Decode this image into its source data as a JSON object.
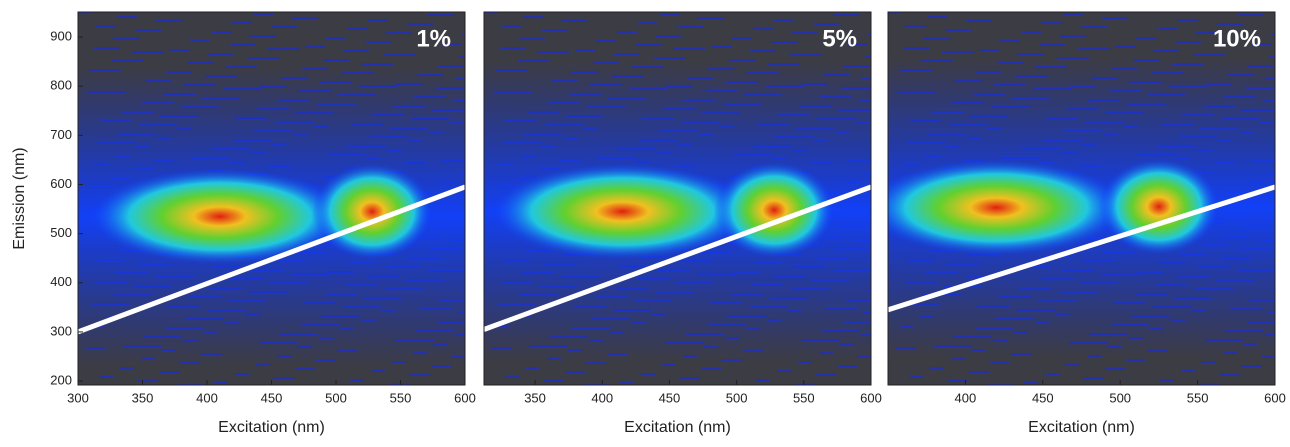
{
  "chart_data": [
    {
      "type": "contour",
      "title": "1%",
      "x_label": "Excitation (nm)",
      "y_label": "Emission (nm)",
      "xlim": [
        300,
        600
      ],
      "xticks": [
        300,
        350,
        400,
        450,
        500,
        550,
        600
      ],
      "ylim": [
        192,
        951
      ],
      "yticks": [
        200,
        300,
        400,
        500,
        600,
        700,
        800,
        900
      ],
      "line": {
        "x": [
          300,
          600
        ],
        "y": [
          300,
          595
        ]
      },
      "peaks": {
        "x": [
          410,
          528
        ],
        "y": [
          535,
          545
        ]
      }
    },
    {
      "type": "contour",
      "title": "5%",
      "x_label": "Excitation (nm)",
      "xlim": [
        312,
        600
      ],
      "xticks": [
        350,
        400,
        450,
        500,
        550,
        600
      ],
      "ylim": [
        192,
        951
      ],
      "line": {
        "x": [
          312,
          600
        ],
        "y": [
          305,
          595
        ]
      },
      "peaks": {
        "x": [
          415,
          528
        ],
        "y": [
          545,
          548
        ]
      }
    },
    {
      "type": "contour",
      "title": "10%",
      "x_label": "Excitation (nm)",
      "xlim": [
        350,
        600
      ],
      "xticks": [
        400,
        450,
        500,
        550,
        600
      ],
      "ylim": [
        192,
        951
      ],
      "line": {
        "x": [
          350,
          600
        ],
        "y": [
          345,
          595
        ]
      },
      "peaks": {
        "x": [
          420,
          525
        ],
        "y": [
          553,
          555
        ]
      }
    }
  ]
}
